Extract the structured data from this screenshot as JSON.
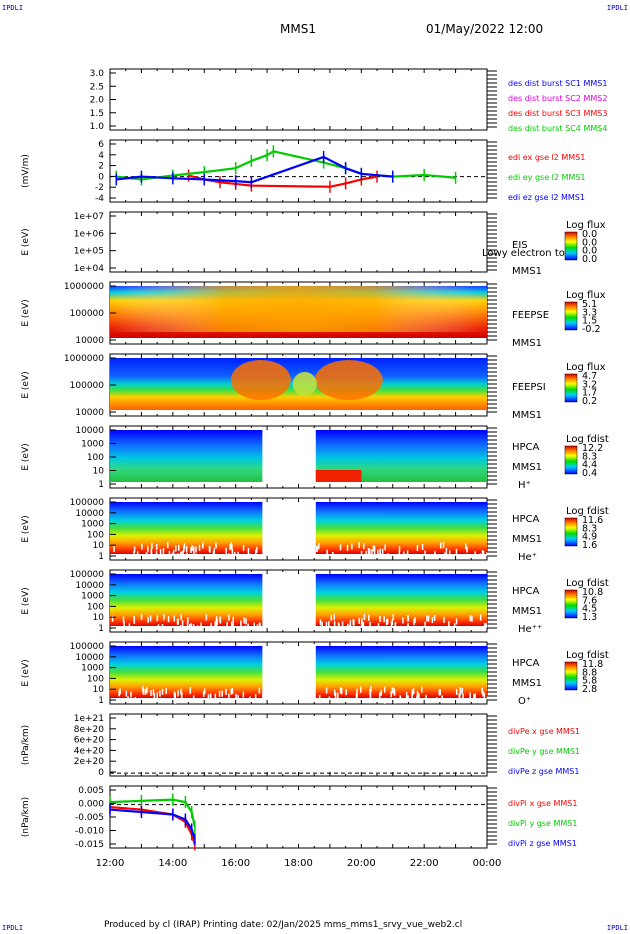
{
  "corners": {
    "tl": "IPDLI",
    "tr": "IPDLI",
    "bl": "IPDLI",
    "br": "IPDLI"
  },
  "header": {
    "spacecraft": "MMS1",
    "date": "01/May/2022 12:00"
  },
  "footer": {
    "text": "Produced by cl (IRAP)   Printing date: 02/Jan/2025   mms_mms1_srvy_vue_web2.cl"
  },
  "colors": {
    "red": "#ff0000",
    "green": "#00cc00",
    "blue": "#0000ff",
    "magenta": "#e000e0"
  },
  "chart_data": [
    {
      "type": "line",
      "panel": "dist",
      "y_ticks": [
        "3.0",
        "2.5",
        "2.0",
        "1.5",
        "1.0"
      ],
      "ylim": [
        0.8,
        3.2
      ],
      "legend": [
        {
          "text": "des dist burst SC1 MMS1",
          "color": "#0000ff"
        },
        {
          "text": "des dist burst SC2 MMS2",
          "color": "#e000e0"
        },
        {
          "text": "des dist burst SC3 MMS3",
          "color": "#ff0000"
        },
        {
          "text": "des dist burst SC4 MMS4",
          "color": "#00cc00"
        }
      ]
    },
    {
      "type": "line",
      "panel": "efield",
      "ylabel": "(mV/m)",
      "y_ticks": [
        "6",
        "4",
        "2",
        "0",
        "-2",
        "-4"
      ],
      "ylim": [
        -4.5,
        6.5
      ],
      "series": [
        {
          "name": "edi ex gse l2 MMS1",
          "color": "#ff0000",
          "x": [
            14.5,
            15.0,
            15.5,
            16.0,
            16.5,
            19.0,
            19.5,
            20.0,
            20.5
          ],
          "values": [
            0.2,
            -0.5,
            -1.0,
            -1.3,
            -1.6,
            -1.8,
            -1.2,
            -0.5,
            0.0
          ]
        },
        {
          "name": "edi ey gse l2 MMS1",
          "color": "#00cc00",
          "x": [
            12.2,
            13.0,
            14.0,
            15.0,
            16.0,
            16.5,
            17.0,
            17.2,
            18.8,
            19.5,
            20.0,
            21.0,
            22.0,
            23.0
          ],
          "values": [
            0.0,
            -0.5,
            0.2,
            0.8,
            1.5,
            2.8,
            3.8,
            4.5,
            2.5,
            1.5,
            0.5,
            0.0,
            0.3,
            -0.2
          ]
        },
        {
          "name": "edi ez gse l2 MMS1",
          "color": "#0000ff",
          "x": [
            12.2,
            13.0,
            14.0,
            15.0,
            16.0,
            16.5,
            18.8,
            19.5,
            20.0,
            21.0
          ],
          "values": [
            -0.5,
            0.0,
            -0.3,
            -0.5,
            -0.8,
            -1.0,
            3.5,
            1.5,
            0.5,
            0.0
          ]
        }
      ]
    },
    {
      "type": "heatmap",
      "panel": "eis",
      "ylabel": "E (eV)",
      "name": "EIS",
      "name2": "MMS1",
      "overlay": "Lowy electron to",
      "y_ticks": [
        "1e+07",
        "1e+06",
        "1e+05",
        "1e+04"
      ],
      "colorbar": {
        "title": "Log flux",
        "ticks": [
          "0.0",
          "0.0",
          "0.0",
          "0.0"
        ]
      },
      "empty": true
    },
    {
      "type": "heatmap",
      "panel": "feepse",
      "ylabel": "E (eV)",
      "name": "FEEPSE",
      "name2": "MMS1",
      "y_ticks": [
        "1000000",
        "100000",
        "10000"
      ],
      "colorbar": {
        "title": "Log flux",
        "ticks": [
          "5.1",
          "3.3",
          "1.5",
          "-0.2"
        ]
      },
      "segments": [
        [
          12.0,
          24.0
        ]
      ]
    },
    {
      "type": "heatmap",
      "panel": "feepsi",
      "ylabel": "E (eV)",
      "name": "FEEPSI",
      "name2": "MMS1",
      "y_ticks": [
        "1000000",
        "100000",
        "10000"
      ],
      "colorbar": {
        "title": "Log flux",
        "ticks": [
          "4.7",
          "3.2",
          "1.7",
          "0.2"
        ]
      },
      "segments": [
        [
          12.0,
          24.0
        ]
      ]
    },
    {
      "type": "heatmap",
      "panel": "hpca_h",
      "ylabel": "E (eV)",
      "name": "HPCA",
      "name2": "MMS1",
      "species": "H⁺",
      "y_ticks": [
        "10000",
        "1000",
        "100",
        "10",
        "1"
      ],
      "colorbar": {
        "title": "Log fdist",
        "ticks": [
          "12.2",
          "8.3",
          "4.4",
          "0.4"
        ]
      },
      "segments": [
        [
          12.0,
          16.85
        ],
        [
          18.55,
          24.0
        ]
      ]
    },
    {
      "type": "heatmap",
      "panel": "hpca_he",
      "ylabel": "E (eV)",
      "name": "HPCA",
      "name2": "MMS1",
      "species": "He⁺",
      "y_ticks": [
        "100000",
        "10000",
        "1000",
        "100",
        "10",
        "1"
      ],
      "colorbar": {
        "title": "Log fdist",
        "ticks": [
          "11.6",
          "8.3",
          "4.9",
          "1.6"
        ]
      },
      "segments": [
        [
          12.0,
          16.85
        ],
        [
          18.55,
          24.0
        ]
      ]
    },
    {
      "type": "heatmap",
      "panel": "hpca_hepp",
      "ylabel": "E (eV)",
      "name": "HPCA",
      "name2": "MMS1",
      "species": "He⁺⁺",
      "y_ticks": [
        "100000",
        "10000",
        "1000",
        "100",
        "10",
        "1"
      ],
      "colorbar": {
        "title": "Log fdist",
        "ticks": [
          "10.8",
          "7.6",
          "4.5",
          "1.3"
        ]
      },
      "segments": [
        [
          12.0,
          16.85
        ],
        [
          18.55,
          24.0
        ]
      ]
    },
    {
      "type": "heatmap",
      "panel": "hpca_o",
      "ylabel": "E (eV)",
      "name": "HPCA",
      "name2": "MMS1",
      "species": "O⁺",
      "y_ticks": [
        "100000",
        "10000",
        "1000",
        "100",
        "10",
        "1"
      ],
      "colorbar": {
        "title": "Log fdist",
        "ticks": [
          "11.8",
          "8.8",
          "5.8",
          "2.8"
        ]
      },
      "segments": [
        [
          12.0,
          16.85
        ],
        [
          18.55,
          24.0
        ]
      ]
    },
    {
      "type": "line",
      "panel": "divpe",
      "ylabel": "(nPa/km)",
      "y_ticks": [
        "1e+21",
        "8e+20",
        "6e+20",
        "4e+20",
        "2e+20",
        "0"
      ],
      "ylim": [
        -5e+19,
        1.05e+21
      ],
      "legend": [
        {
          "text": "divPe x gse MMS1",
          "color": "#ff0000"
        },
        {
          "text": "divPe y gse MMS1",
          "color": "#00cc00"
        },
        {
          "text": "divPe z gse MMS1",
          "color": "#0000ff"
        }
      ]
    },
    {
      "type": "line",
      "panel": "divpi",
      "ylabel": "(nPa/km)",
      "y_ticks": [
        "0.005",
        "0.000",
        "-0.005",
        "-0.010",
        "-0.015"
      ],
      "ylim": [
        -0.0175,
        0.0075
      ],
      "series": [
        {
          "name": "divPi x gse MMS1",
          "color": "#ff0000",
          "x": [
            12.0,
            13.0,
            14.0,
            14.4,
            14.6,
            14.7
          ],
          "values": [
            -0.001,
            -0.002,
            -0.004,
            -0.007,
            -0.012,
            -0.016
          ]
        },
        {
          "name": "divPi y gse MMS1",
          "color": "#00cc00",
          "x": [
            12.0,
            13.0,
            14.0,
            14.4,
            14.6,
            14.7
          ],
          "values": [
            0.001,
            0.0015,
            0.002,
            0.001,
            -0.003,
            -0.009
          ]
        },
        {
          "name": "divPi z gse MMS1",
          "color": "#0000ff",
          "x": [
            12.0,
            13.0,
            14.0,
            14.4,
            14.6,
            14.7
          ],
          "values": [
            -0.002,
            -0.003,
            -0.004,
            -0.006,
            -0.01,
            -0.014
          ]
        }
      ]
    }
  ],
  "time_axis": {
    "range": [
      12,
      24
    ],
    "labels": [
      "12:00",
      "14:00",
      "16:00",
      "18:00",
      "20:00",
      "22:00",
      "00:00"
    ]
  }
}
